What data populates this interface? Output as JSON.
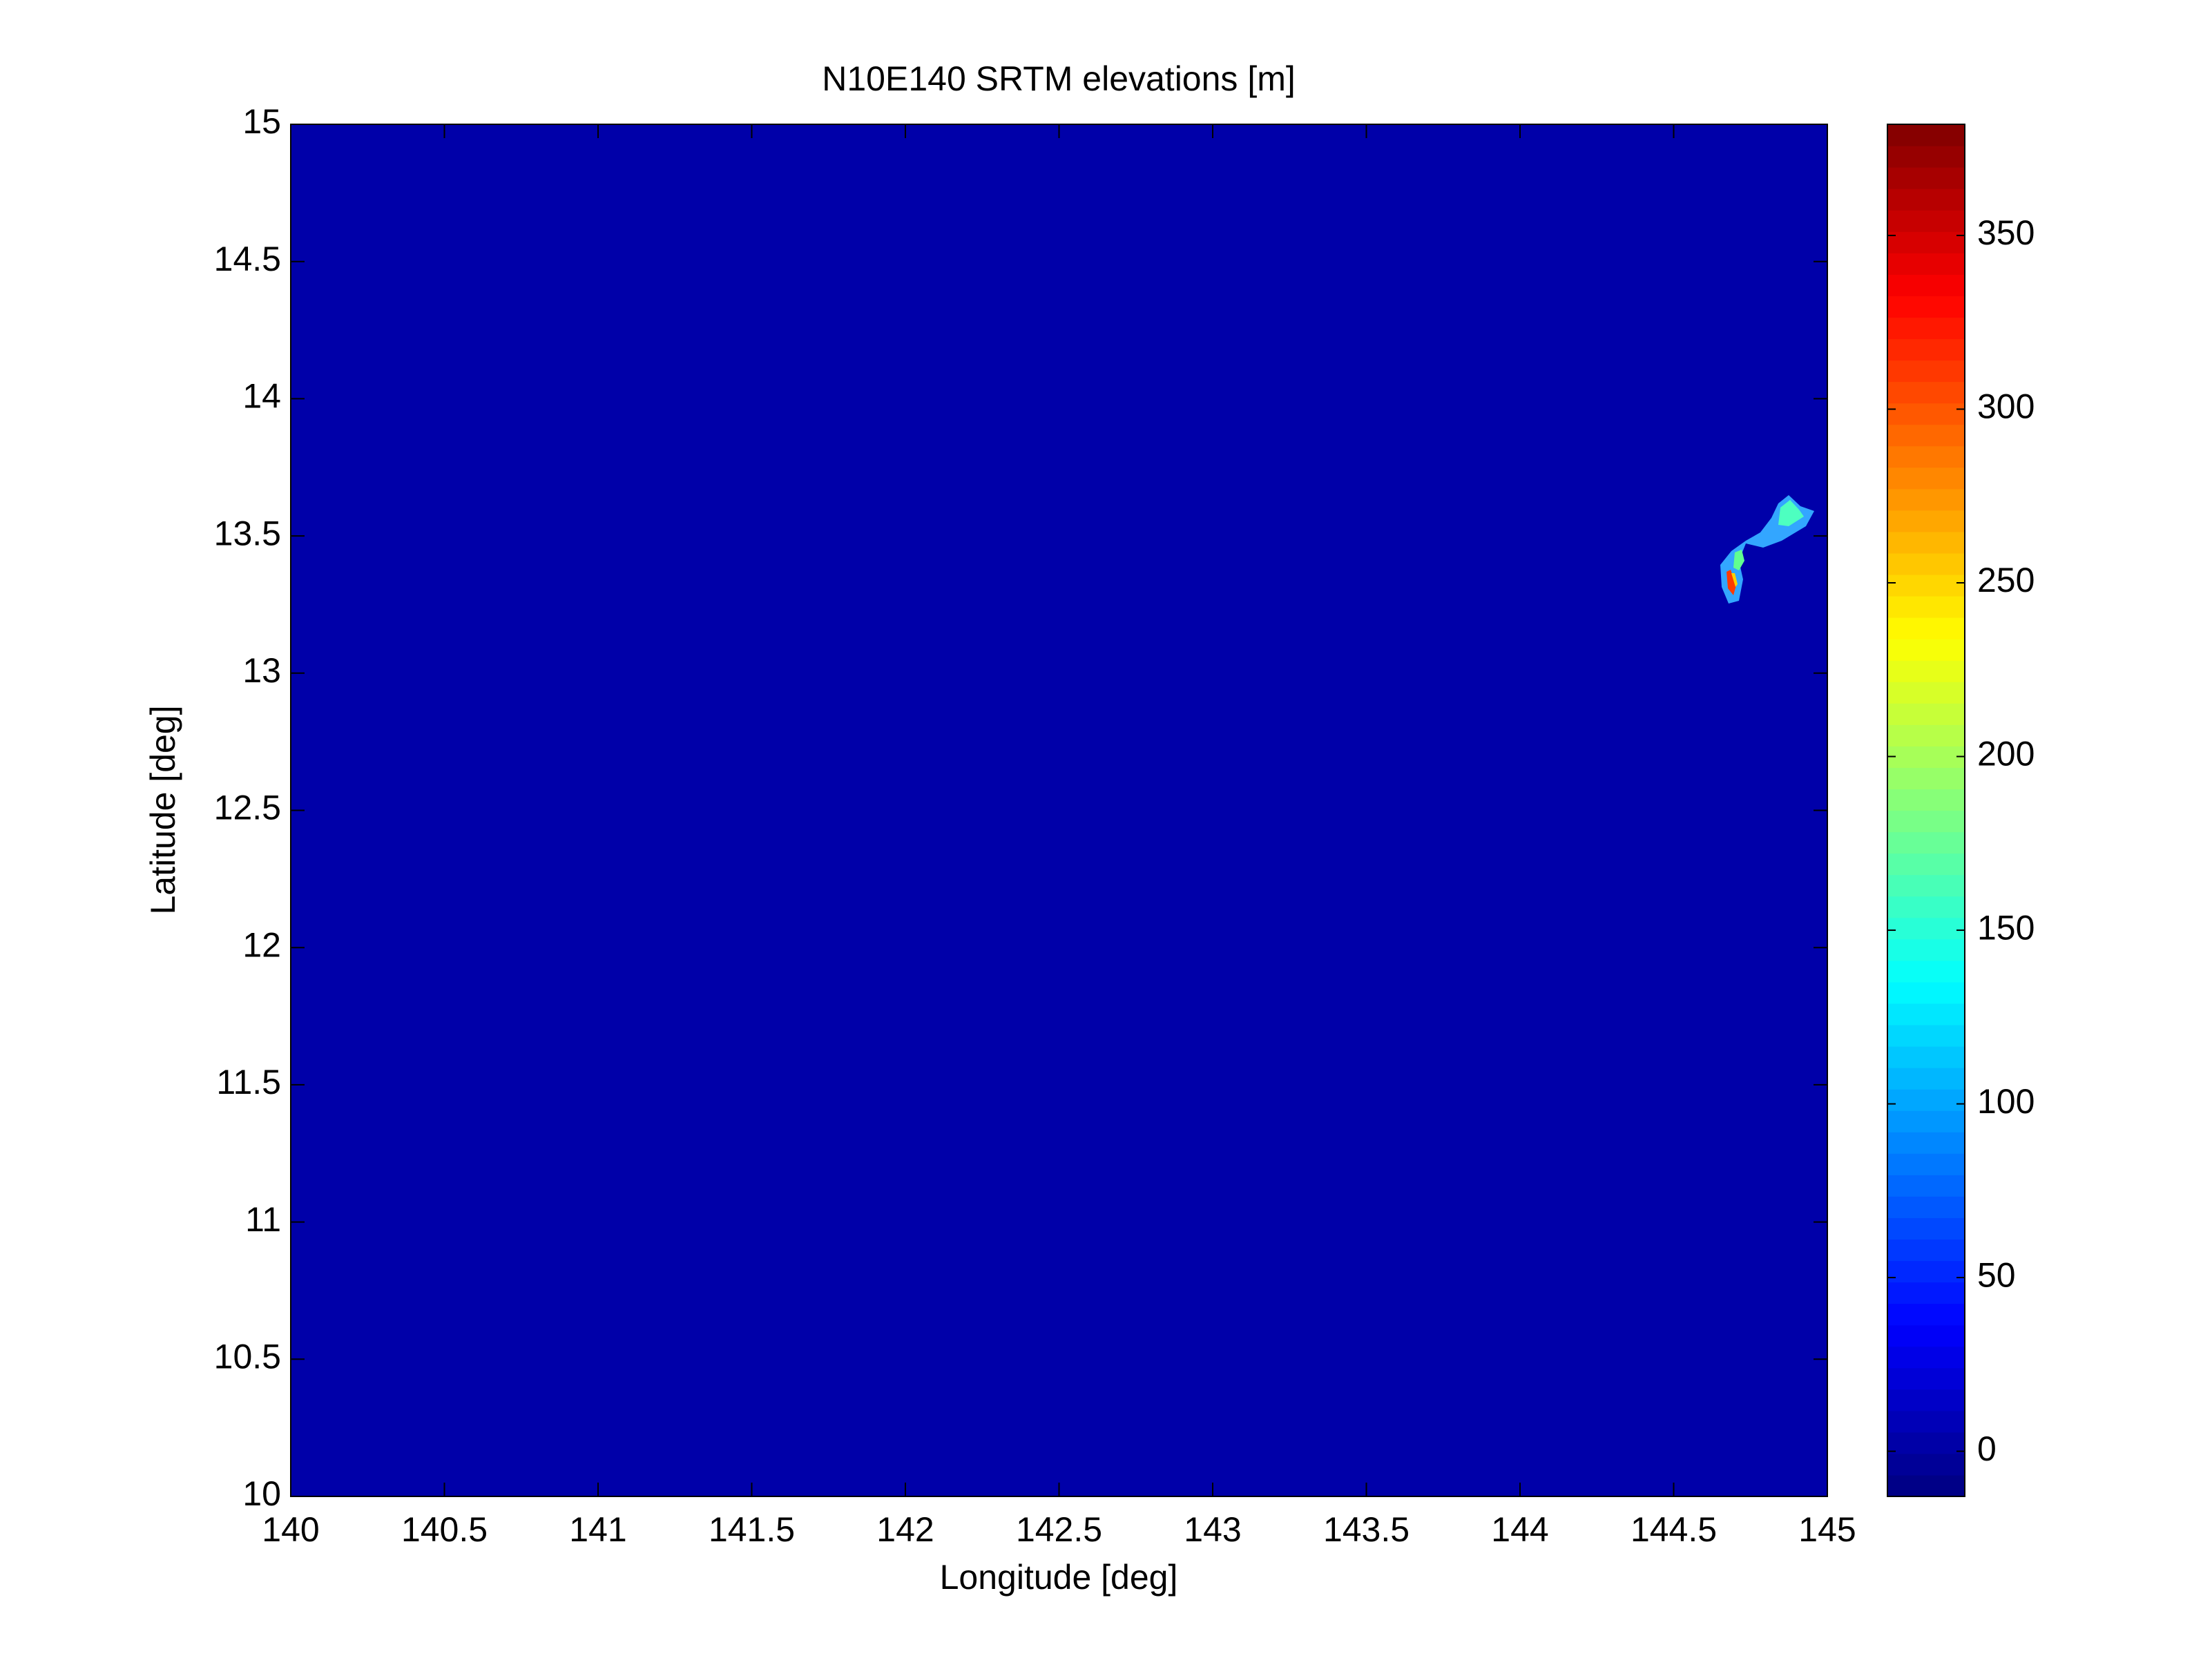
{
  "chart_data": {
    "type": "heatmap",
    "title": "N10E140 SRTM elevations [m]",
    "x_label": "Longitude [deg]",
    "y_label": "Latitude [deg]",
    "xlim": [
      140,
      145
    ],
    "xticks": [
      140,
      140.5,
      141,
      141.5,
      142,
      142.5,
      143,
      143.5,
      144,
      144.5,
      145
    ],
    "ylim": [
      10,
      15
    ],
    "yticks": [
      10,
      10.5,
      11,
      11.5,
      12,
      12.5,
      13,
      13.5,
      14,
      14.5,
      15
    ],
    "colormap": "jet",
    "clim": [
      -13,
      382
    ],
    "cticks": [
      0,
      50,
      100,
      150,
      200,
      250,
      300,
      350
    ]
  }
}
